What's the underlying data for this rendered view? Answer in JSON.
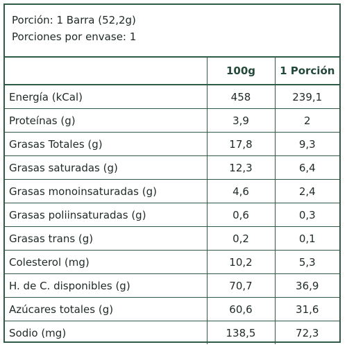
{
  "header": {
    "portion": "Porción: 1 Barra (52,2g)",
    "portions_per_pack": "Porciones por envase: 1"
  },
  "table": {
    "columns": [
      "",
      "100g",
      "1 Porción"
    ],
    "rows": [
      {
        "name": "Energía (kCal)",
        "per100": "458",
        "perPortion": "239,1"
      },
      {
        "name": "Proteínas (g)",
        "per100": "3,9",
        "perPortion": "2"
      },
      {
        "name": "Grasas Totales (g)",
        "per100": "17,8",
        "perPortion": "9,3"
      },
      {
        "name": "Grasas saturadas (g)",
        "per100": "12,3",
        "perPortion": "6,4"
      },
      {
        "name": "Grasas monoinsaturadas (g)",
        "per100": "4,6",
        "perPortion": "2,4"
      },
      {
        "name": "Grasas poliinsaturadas (g)",
        "per100": "0,6",
        "perPortion": "0,3"
      },
      {
        "name": "Grasas trans (g)",
        "per100": "0,2",
        "perPortion": "0,1"
      },
      {
        "name": "Colesterol (mg)",
        "per100": "10,2",
        "perPortion": "5,3"
      },
      {
        "name": "H. de C. disponibles (g)",
        "per100": "70,7",
        "perPortion": "36,9"
      },
      {
        "name": "Azúcares totales (g)",
        "per100": "60,6",
        "perPortion": "31,6"
      },
      {
        "name": "Sodio (mg)",
        "per100": "138,5",
        "perPortion": "72,3"
      }
    ]
  },
  "colors": {
    "border": "#2f5a46",
    "header_text": "#24493a",
    "text": "#1f2a24"
  }
}
